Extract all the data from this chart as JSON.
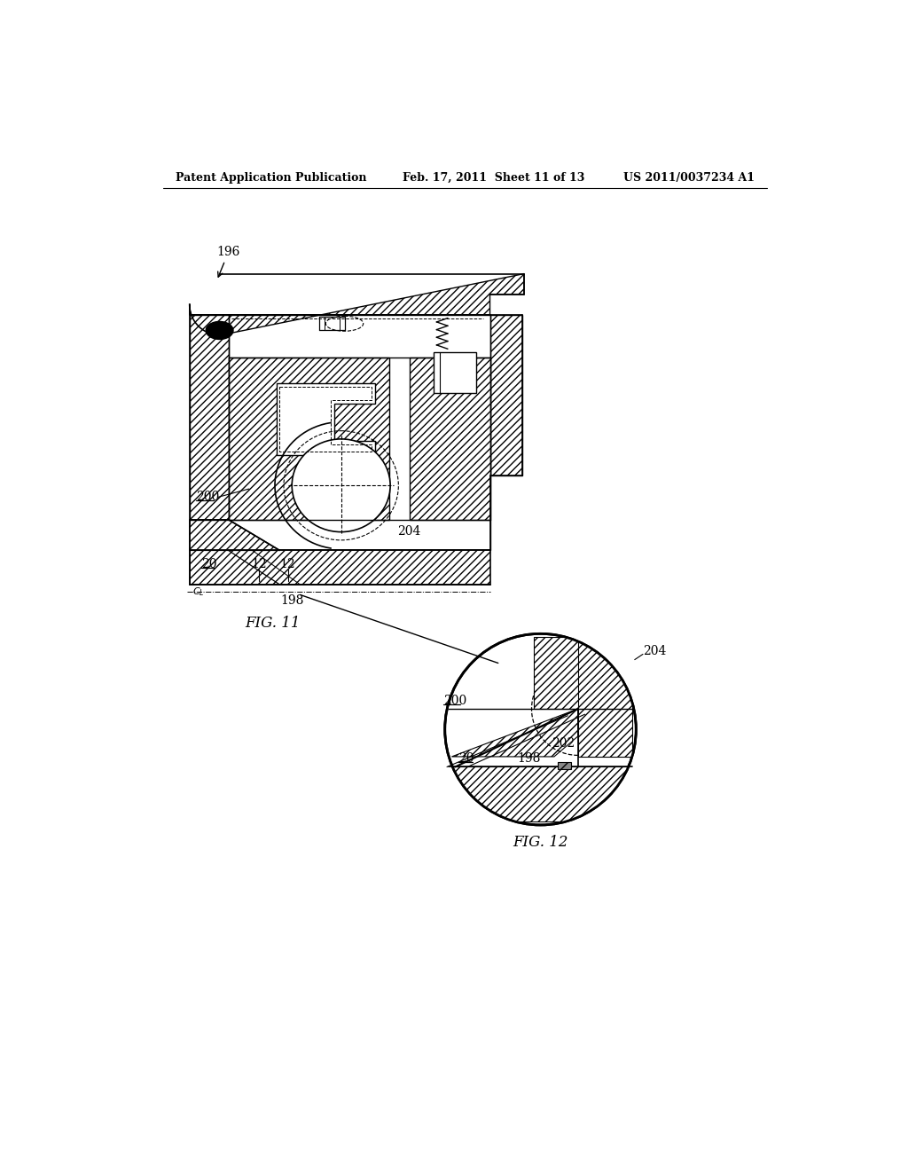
{
  "header_left": "Patent Application Publication",
  "header_mid": "Feb. 17, 2011  Sheet 11 of 13",
  "header_right": "US 2011/0037234 A1",
  "fig11_label": "FIG. 11",
  "fig12_label": "FIG. 12",
  "bg_color": "#ffffff"
}
